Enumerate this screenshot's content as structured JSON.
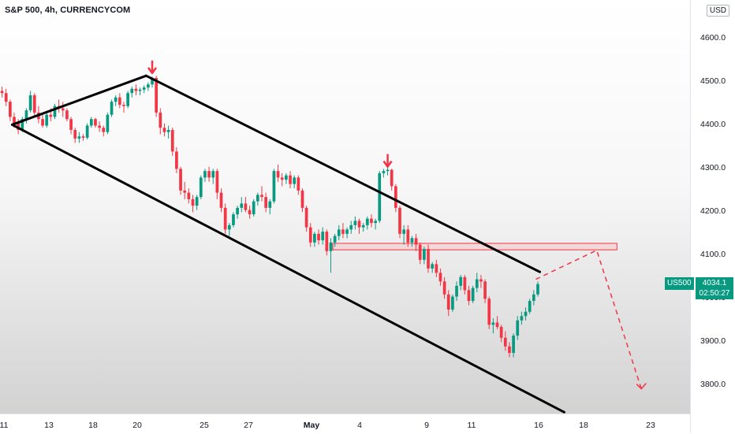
{
  "header": {
    "title": "S&P 500, 4h, CURRENCYCOM",
    "currency": "USD"
  },
  "price_tag": {
    "symbol": "US500",
    "price": "4034.1",
    "countdown": "02:50:27"
  },
  "colors": {
    "up": "#089981",
    "down": "#f23645",
    "channel": "#000000",
    "zone_fill": "#f7c6ca",
    "zone_border": "#f23645"
  },
  "icons": [
    "down-arrow-icon",
    "down-arrow-icon"
  ],
  "chart_data": {
    "type": "candlestick",
    "title": "S&P 500, 4h, CURRENCYCOM",
    "xlabel": "",
    "ylabel": "",
    "ylim": [
      3735,
      4690
    ],
    "y_ticks": [
      "4600.0",
      "4500.0",
      "4400.0",
      "4300.0",
      "4200.0",
      "4100.0",
      "4000.0",
      "3900.0",
      "3800.0"
    ],
    "x_ticks": [
      "11",
      "13",
      "18",
      "20",
      "25",
      "27",
      "May",
      "4",
      "9",
      "11",
      "16",
      "18",
      "23"
    ],
    "x_ticks_bold": [
      "May"
    ],
    "x_range_bars": [
      0,
      170
    ],
    "ohlc": [
      [
        4480,
        4490,
        4465,
        4475
      ],
      [
        4475,
        4485,
        4445,
        4455
      ],
      [
        4455,
        4460,
        4410,
        4420
      ],
      [
        4420,
        4430,
        4395,
        4405
      ],
      [
        4405,
        4415,
        4380,
        4390
      ],
      [
        4390,
        4420,
        4385,
        4415
      ],
      [
        4415,
        4440,
        4405,
        4435
      ],
      [
        4435,
        4480,
        4430,
        4470
      ],
      [
        4470,
        4475,
        4420,
        4430
      ],
      [
        4430,
        4445,
        4405,
        4415
      ],
      [
        4415,
        4425,
        4395,
        4400
      ],
      [
        4400,
        4430,
        4395,
        4425
      ],
      [
        4425,
        4440,
        4410,
        4420
      ],
      [
        4420,
        4450,
        4415,
        4445
      ],
      [
        4445,
        4460,
        4430,
        4440
      ],
      [
        4440,
        4455,
        4420,
        4435
      ],
      [
        4435,
        4440,
        4410,
        4415
      ],
      [
        4415,
        4420,
        4380,
        4390
      ],
      [
        4390,
        4395,
        4360,
        4370
      ],
      [
        4370,
        4385,
        4360,
        4375
      ],
      [
        4375,
        4380,
        4365,
        4372
      ],
      [
        4372,
        4405,
        4368,
        4400
      ],
      [
        4400,
        4420,
        4395,
        4415
      ],
      [
        4415,
        4418,
        4395,
        4400
      ],
      [
        4400,
        4410,
        4385,
        4395
      ],
      [
        4395,
        4400,
        4375,
        4385
      ],
      [
        4385,
        4430,
        4380,
        4425
      ],
      [
        4425,
        4460,
        4420,
        4455
      ],
      [
        4455,
        4470,
        4445,
        4465
      ],
      [
        4465,
        4475,
        4440,
        4448
      ],
      [
        4448,
        4455,
        4430,
        4445
      ],
      [
        4445,
        4480,
        4440,
        4475
      ],
      [
        4475,
        4490,
        4465,
        4485
      ],
      [
        4485,
        4495,
        4470,
        4480
      ],
      [
        4480,
        4488,
        4470,
        4483
      ],
      [
        4483,
        4493,
        4475,
        4488
      ],
      [
        4488,
        4500,
        4480,
        4495
      ],
      [
        4495,
        4513,
        4488,
        4510
      ],
      [
        4510,
        4515,
        4420,
        4430
      ],
      [
        4430,
        4440,
        4380,
        4395
      ],
      [
        4395,
        4405,
        4375,
        4385
      ],
      [
        4385,
        4400,
        4370,
        4390
      ],
      [
        4390,
        4395,
        4330,
        4340
      ],
      [
        4340,
        4350,
        4290,
        4300
      ],
      [
        4300,
        4305,
        4240,
        4250
      ],
      [
        4250,
        4270,
        4230,
        4245
      ],
      [
        4245,
        4255,
        4220,
        4230
      ],
      [
        4230,
        4240,
        4200,
        4215
      ],
      [
        4215,
        4240,
        4205,
        4235
      ],
      [
        4235,
        4285,
        4230,
        4280
      ],
      [
        4280,
        4300,
        4270,
        4295
      ],
      [
        4295,
        4305,
        4270,
        4280
      ],
      [
        4280,
        4300,
        4265,
        4295
      ],
      [
        4295,
        4300,
        4230,
        4245
      ],
      [
        4245,
        4255,
        4200,
        4210
      ],
      [
        4210,
        4220,
        4150,
        4160
      ],
      [
        4160,
        4175,
        4145,
        4170
      ],
      [
        4170,
        4200,
        4165,
        4195
      ],
      [
        4195,
        4215,
        4185,
        4210
      ],
      [
        4210,
        4235,
        4200,
        4220
      ],
      [
        4220,
        4235,
        4200,
        4205
      ],
      [
        4205,
        4215,
        4185,
        4195
      ],
      [
        4195,
        4230,
        4190,
        4225
      ],
      [
        4225,
        4245,
        4215,
        4240
      ],
      [
        4240,
        4260,
        4225,
        4235
      ],
      [
        4235,
        4245,
        4200,
        4210
      ],
      [
        4210,
        4230,
        4195,
        4225
      ],
      [
        4225,
        4300,
        4220,
        4295
      ],
      [
        4295,
        4310,
        4270,
        4280
      ],
      [
        4280,
        4290,
        4260,
        4275
      ],
      [
        4275,
        4290,
        4265,
        4285
      ],
      [
        4285,
        4295,
        4255,
        4265
      ],
      [
        4265,
        4285,
        4255,
        4280
      ],
      [
        4280,
        4285,
        4240,
        4250
      ],
      [
        4250,
        4255,
        4200,
        4210
      ],
      [
        4210,
        4215,
        4155,
        4165
      ],
      [
        4165,
        4175,
        4120,
        4130
      ],
      [
        4130,
        4155,
        4120,
        4150
      ],
      [
        4150,
        4160,
        4125,
        4135
      ],
      [
        4135,
        4165,
        4125,
        4155
      ],
      [
        4155,
        4160,
        4100,
        4110
      ],
      [
        4110,
        4140,
        4060,
        4130
      ],
      [
        4130,
        4150,
        4120,
        4145
      ],
      [
        4145,
        4170,
        4135,
        4160
      ],
      [
        4160,
        4175,
        4140,
        4150
      ],
      [
        4150,
        4165,
        4140,
        4160
      ],
      [
        4160,
        4180,
        4150,
        4170
      ],
      [
        4170,
        4190,
        4160,
        4180
      ],
      [
        4180,
        4185,
        4150,
        4165
      ],
      [
        4165,
        4175,
        4155,
        4170
      ],
      [
        4170,
        4190,
        4160,
        4185
      ],
      [
        4185,
        4195,
        4165,
        4175
      ],
      [
        4175,
        4185,
        4160,
        4180
      ],
      [
        4180,
        4295,
        4175,
        4290
      ],
      [
        4290,
        4300,
        4280,
        4295
      ],
      [
        4295,
        4305,
        4285,
        4298
      ],
      [
        4298,
        4300,
        4250,
        4260
      ],
      [
        4260,
        4265,
        4200,
        4210
      ],
      [
        4210,
        4215,
        4140,
        4150
      ],
      [
        4150,
        4170,
        4125,
        4160
      ],
      [
        4160,
        4170,
        4120,
        4130
      ],
      [
        4130,
        4145,
        4120,
        4140
      ],
      [
        4140,
        4150,
        4110,
        4125
      ],
      [
        4125,
        4130,
        4080,
        4090
      ],
      [
        4090,
        4120,
        4080,
        4115
      ],
      [
        4115,
        4125,
        4060,
        4070
      ],
      [
        4070,
        4085,
        4060,
        4080
      ],
      [
        4080,
        4090,
        4050,
        4060
      ],
      [
        4060,
        4070,
        4030,
        4040
      ],
      [
        4040,
        4050,
        4000,
        4010
      ],
      [
        4010,
        4020,
        3960,
        3975
      ],
      [
        3975,
        4010,
        3970,
        4005
      ],
      [
        4005,
        4040,
        3995,
        4030
      ],
      [
        4030,
        4055,
        4020,
        4050
      ],
      [
        4050,
        4055,
        4010,
        4020
      ],
      [
        4020,
        4030,
        3985,
        3995
      ],
      [
        3995,
        4030,
        3990,
        4025
      ],
      [
        4025,
        4060,
        4015,
        4045
      ],
      [
        4045,
        4055,
        4025,
        4040
      ],
      [
        4040,
        4045,
        3990,
        4000
      ],
      [
        4000,
        4005,
        3930,
        3940
      ],
      [
        3940,
        3955,
        3920,
        3945
      ],
      [
        3945,
        3960,
        3930,
        3935
      ],
      [
        3935,
        3940,
        3900,
        3910
      ],
      [
        3910,
        3925,
        3880,
        3890
      ],
      [
        3890,
        3900,
        3865,
        3875
      ],
      [
        3875,
        3920,
        3865,
        3915
      ],
      [
        3915,
        3960,
        3905,
        3950
      ],
      [
        3950,
        3970,
        3940,
        3960
      ],
      [
        3960,
        3980,
        3950,
        3970
      ],
      [
        3970,
        4000,
        3965,
        3995
      ],
      [
        3995,
        4020,
        3985,
        4010
      ],
      [
        4010,
        4040,
        4005,
        4034
      ]
    ],
    "channel_lines": [
      {
        "name": "",
        "from": [
          3,
          4402
        ],
        "to": [
          36,
          4515
        ]
      },
      {
        "name": "",
        "from": [
          36,
          4515
        ],
        "to": [
          133,
          4062
        ]
      },
      {
        "name": "",
        "from": [
          3,
          4402
        ],
        "to": [
          139,
          3738
        ]
      }
    ],
    "resistance_zone": {
      "y_top": 4128,
      "y_bottom": 4113,
      "x_from": 82,
      "x_to": 152
    },
    "projection_path": [
      [
        132,
        4045
      ],
      [
        147,
        4112
      ],
      [
        158,
        3792
      ]
    ],
    "markers": [
      {
        "type": "arrow-down",
        "bar": 37,
        "price": 4532
      },
      {
        "type": "arrow-down",
        "bar": 95,
        "price": 4316
      }
    ]
  }
}
